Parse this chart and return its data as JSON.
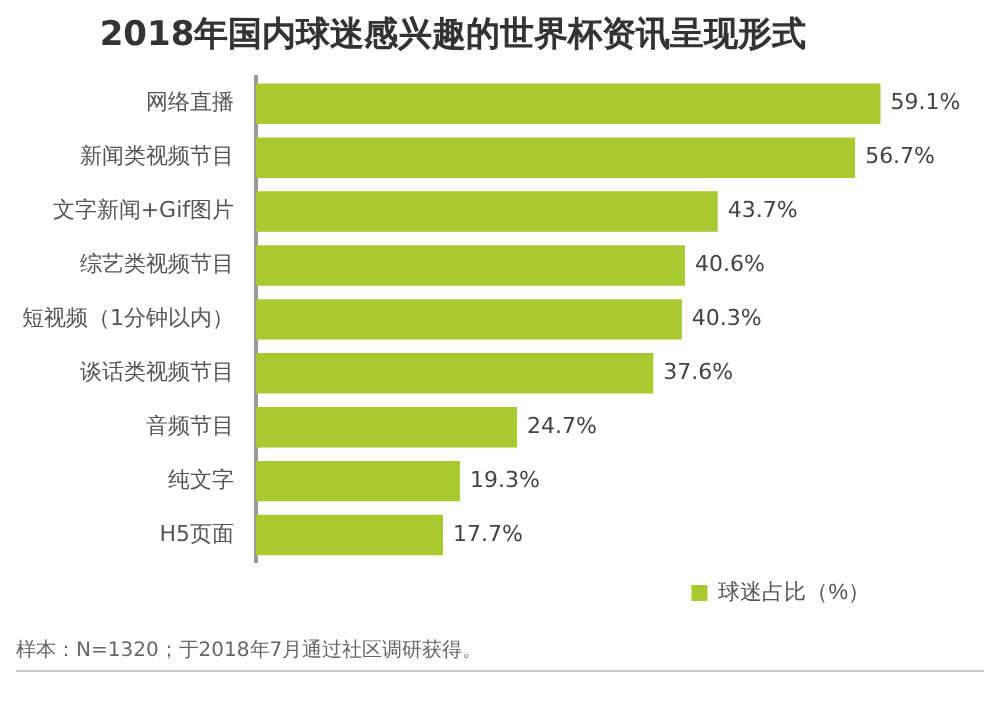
{
  "chart_data": {
    "type": "bar",
    "orientation": "horizontal",
    "title": "2018年国内球迷感兴趣的世界杯资讯呈现形式",
    "categories": [
      "网络直播",
      "新闻类视频节目",
      "文字新闻+Gif图片",
      "综艺类视频节目",
      "短视频（1分钟以内）",
      "谈话类视频节目",
      "音频节目",
      "纯文字",
      "H5页面"
    ],
    "series": [
      {
        "name": "球迷占比（%）",
        "color": "#a9c930",
        "values": [
          59.1,
          56.7,
          43.7,
          40.6,
          40.3,
          37.6,
          24.7,
          19.3,
          17.7
        ],
        "value_labels": [
          "59.1%",
          "56.7%",
          "43.7%",
          "40.6%",
          "40.3%",
          "37.6%",
          "24.7%",
          "19.3%",
          "17.7%"
        ]
      }
    ],
    "legend": "bottom",
    "annotations": [
      "样本：N=1320；于2018年7月通过社区调研获得。"
    ]
  }
}
